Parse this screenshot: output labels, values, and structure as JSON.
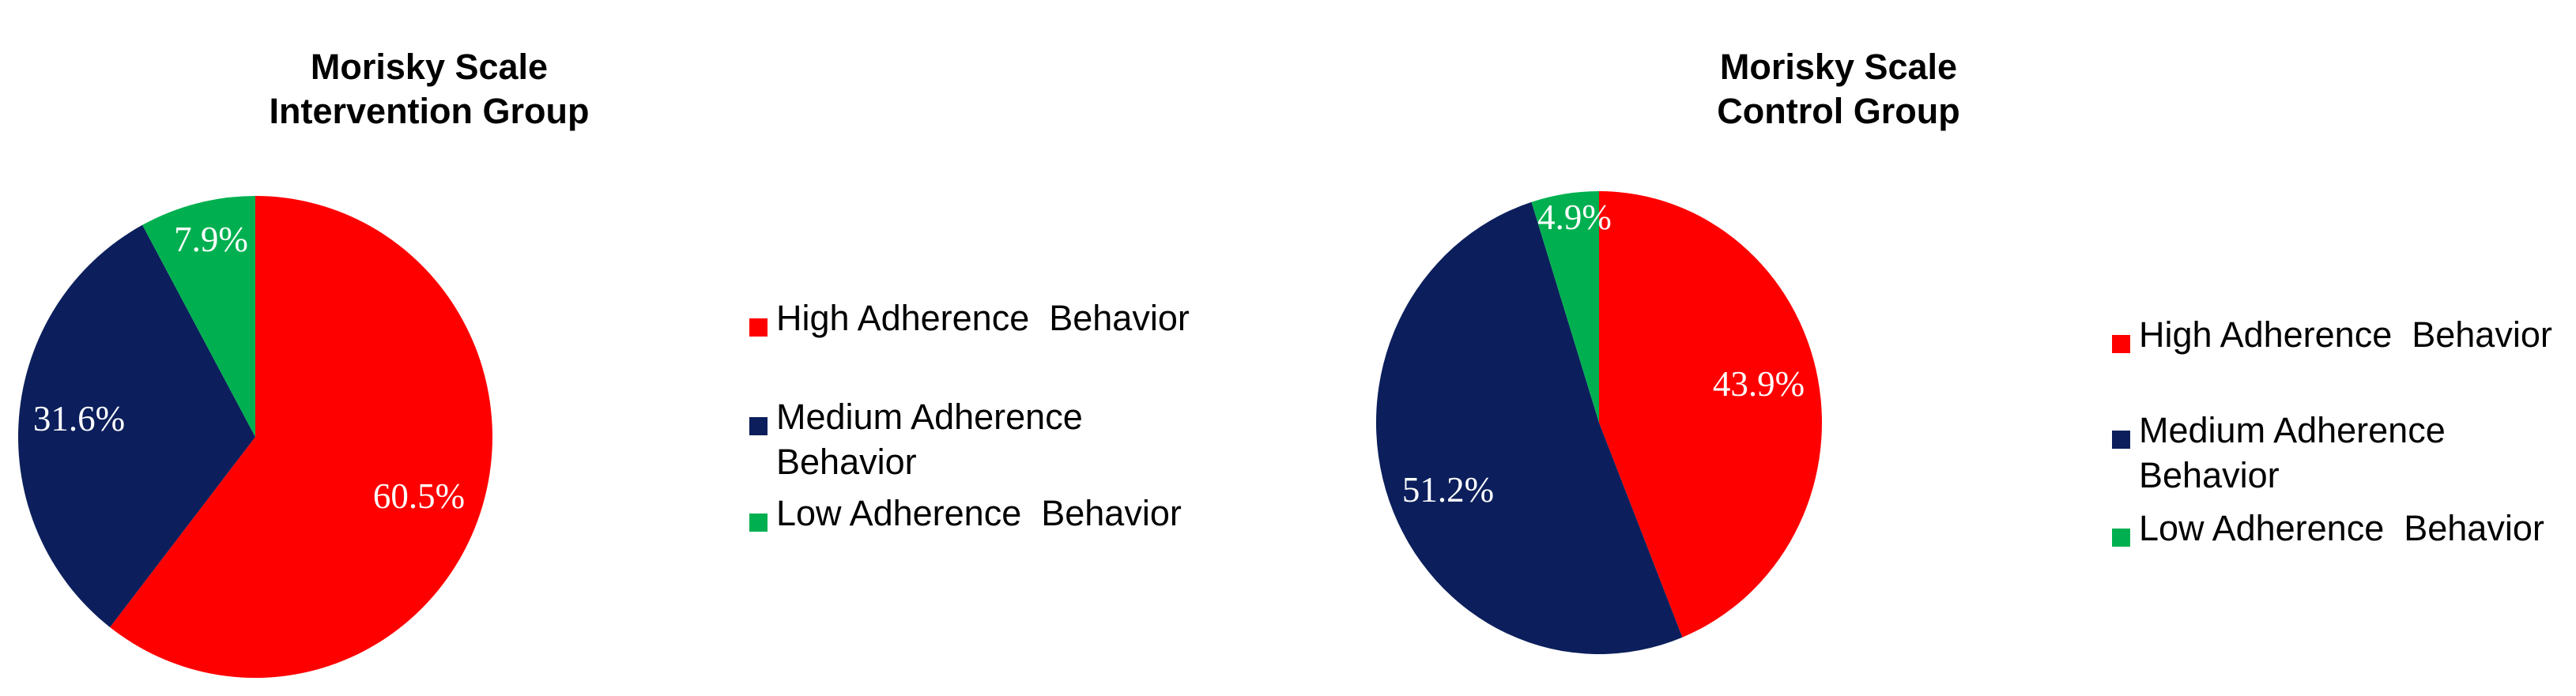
{
  "chart_data": [
    {
      "type": "pie",
      "title": "Morisky Scale",
      "subtitle": "Intervention Group",
      "categories": [
        "High Adherence Behavior",
        "Medium Adherence Behavior",
        "Low Adherence Behavior"
      ],
      "values": [
        60.5,
        31.6,
        7.9
      ],
      "labels": [
        "60.5%",
        "31.6%",
        "7.9%"
      ],
      "colors": [
        "#ff0000",
        "#0c1f5c",
        "#00b050"
      ],
      "legend_position": "right",
      "legend_lines": [
        [
          "High Adherence  Behavior"
        ],
        [
          "Medium Adherence",
          "Behavior"
        ],
        [
          "Low Adherence  Behavior"
        ]
      ]
    },
    {
      "type": "pie",
      "title": "Morisky Scale",
      "subtitle": "Control Group",
      "categories": [
        "High Adherence Behavior",
        "Medium Adherence Behavior",
        "Low Adherence Behavior"
      ],
      "values": [
        43.9,
        51.2,
        4.9
      ],
      "labels": [
        "43.9%",
        "51.2%",
        "4.9%"
      ],
      "colors": [
        "#ff0000",
        "#0c1f5c",
        "#00b050"
      ],
      "legend_position": "right",
      "legend_lines": [
        [
          "High Adherence  Behavior"
        ],
        [
          "Medium Adherence",
          "Behavior"
        ],
        [
          "Low Adherence  Behavior"
        ]
      ]
    }
  ]
}
